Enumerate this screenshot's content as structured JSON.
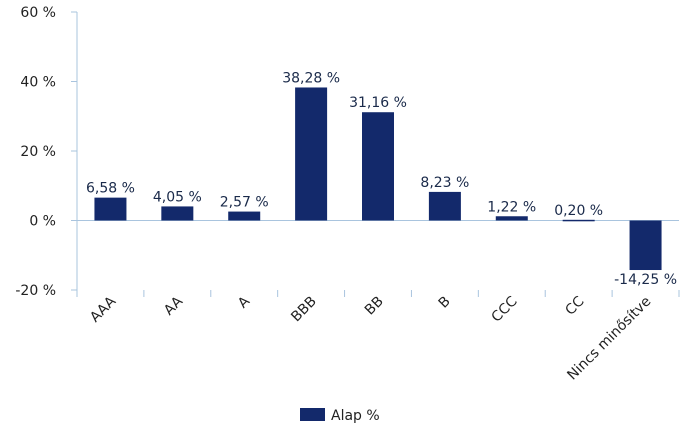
{
  "chart_data": {
    "type": "bar",
    "categories": [
      "AAA",
      "AA",
      "A",
      "BBB",
      "BB",
      "B",
      "CCC",
      "CC",
      "Nincs minősítve"
    ],
    "series": [
      {
        "name": "Alap %",
        "values": [
          6.58,
          4.05,
          2.57,
          38.28,
          31.16,
          8.23,
          1.22,
          0.2,
          -14.25
        ],
        "labels": [
          "6,58 %",
          "4,05 %",
          "2,57 %",
          "38,28 %",
          "31,16 %",
          "8,23 %",
          "1,22 %",
          "0,20 %",
          "-14,25 %"
        ]
      }
    ],
    "ylim": [
      -20,
      60
    ],
    "yticks": [
      -20,
      0,
      20,
      40,
      60
    ],
    "ytick_labels": [
      "-20 %",
      "0 %",
      "20 %",
      "40 %",
      "60 %"
    ],
    "grid": false,
    "legend": "bottom",
    "colors": {
      "bar": "#13296b",
      "axis": "#a9c4de"
    }
  }
}
